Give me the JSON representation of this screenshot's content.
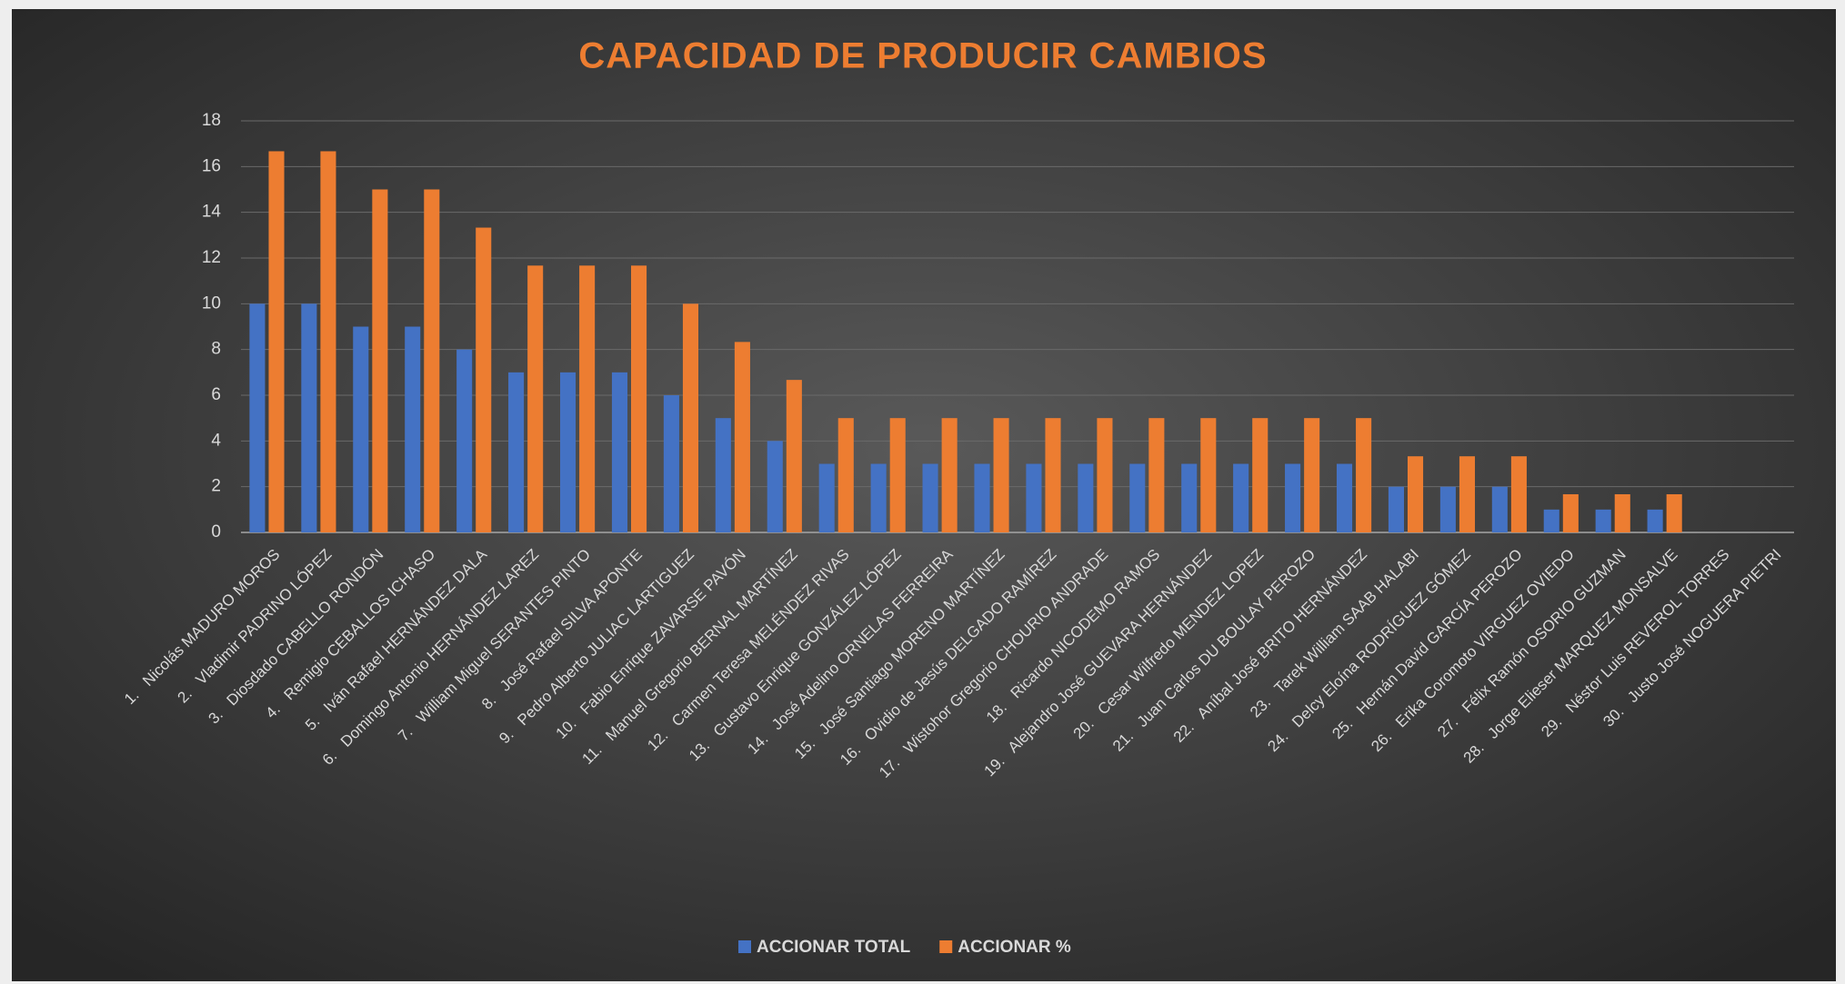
{
  "chart_data": {
    "type": "bar",
    "title": "CAPACIDAD DE PRODUCIR CAMBIOS",
    "categories": [
      "1.   Nicolás MADURO MOROS",
      "2.   Vladimir PADRINO LÓPEZ",
      "3.   Diosdado CABELLO RONDÓN",
      "4.   Remigio CEBALLOS ICHASO",
      "5.   Iván Rafael HERNÁNDEZ DALA",
      "6.   Domingo Antonio HERNÁNDEZ LAREZ",
      "7.   William Miguel SERANTES PINTO",
      "8.   José Rafael SILVA APONTE",
      "9.   Pedro Alberto JULIAC LARTIGUEZ",
      "10.   Fabio Enrique ZAVARSE PAVÓN",
      "11.   Manuel Gregorio BERNAL MARTÍNEZ",
      "12.   Carmen Teresa MELÉNDEZ RIVAS",
      "13.   Gustavo Enrique GONZÁLEZ LÓPEZ",
      "14.   José Adelino ORNELAS FERREIRA",
      "15.   José Santiago MORENO MARTÍNEZ",
      "16.   Ovidio de Jesús DELGADO RAMÍREZ",
      "17.   Wistohor Gregorio CHOURIO ANDRADE",
      "18.   Ricardo NICODEMO RAMOS",
      "19.   Alejandro José GUEVARA HERNÁNDEZ",
      "20.   Cesar Wilfredo MENDEZ LOPEZ",
      "21.   Juan Carlos DU BOULAY PEROZO",
      "22.   Aníbal José BRITO HERNÁNDEZ",
      "23.   Tarek William SAAB HALABI",
      "24.   Delcy Eloína RODRÍGUEZ GÓMEZ",
      "25.   Hernán David GARCÍA PEROZO",
      "26.   Erika Coromoto VIRGUEZ OVIEDO",
      "27.   Félix Ramón OSORIO GUZMAN",
      "28.   Jorge Elieser MARQUEZ MONSALVE",
      "29.   Néstor Luis REVEROL TORRES",
      "30.   Justo José NOGUERA PIETRI"
    ],
    "series": [
      {
        "name": "ACCIONAR TOTAL",
        "color": "#4472c4",
        "values": [
          10,
          10,
          9,
          9,
          8,
          7,
          7,
          7,
          6,
          5,
          4,
          3,
          3,
          3,
          3,
          3,
          3,
          3,
          3,
          3,
          3,
          3,
          2,
          2,
          2,
          1,
          1,
          1,
          0,
          0
        ]
      },
      {
        "name": "ACCIONAR %",
        "color": "#ed7d31",
        "values": [
          16.67,
          16.67,
          15,
          15,
          13.33,
          11.67,
          11.67,
          11.67,
          10,
          8.33,
          6.67,
          5,
          5,
          5,
          5,
          5,
          5,
          5,
          5,
          5,
          5,
          5,
          3.33,
          3.33,
          3.33,
          1.67,
          1.67,
          1.67,
          0,
          0
        ]
      }
    ],
    "ylim": [
      0,
      18
    ],
    "yticks": [
      0,
      2,
      4,
      6,
      8,
      10,
      12,
      14,
      16,
      18
    ],
    "grid": true,
    "legend": "bottom"
  }
}
